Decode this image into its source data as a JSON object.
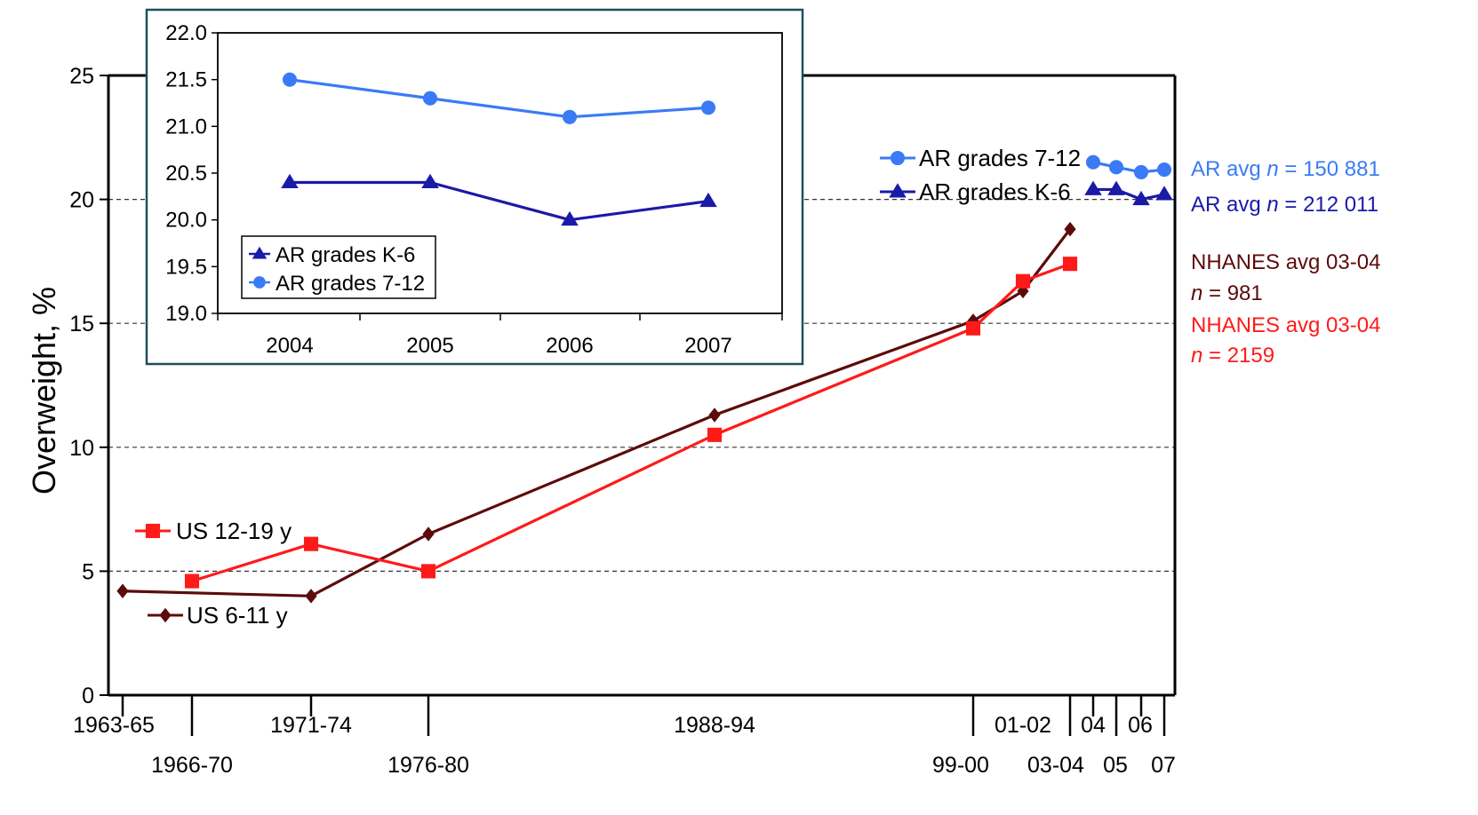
{
  "chart_data": [
    {
      "type": "line",
      "ylabel": "Overweight, %",
      "ylim": [
        0,
        25
      ],
      "yticks": [
        "0",
        "5",
        "10",
        "15",
        "20",
        "25"
      ],
      "grid": "horizontal dashed",
      "x_labels": [
        "1963-65",
        "1966-70",
        "1971-74",
        "1976-80",
        "1988-94",
        "99-00",
        "01-02",
        "03-04",
        "04",
        "05",
        "06",
        "07"
      ],
      "series": [
        {
          "name": "US 6-11 y",
          "color": "#5c0b0b",
          "marker": "diamond",
          "x": [
            "1963-65",
            "1971-74",
            "1976-80",
            "1988-94",
            "99-00",
            "01-02",
            "03-04"
          ],
          "values": [
            4.2,
            4.0,
            6.5,
            11.3,
            15.1,
            16.3,
            18.8
          ]
        },
        {
          "name": "US 12-19 y",
          "color": "#ff1a1a",
          "marker": "square",
          "x": [
            "1966-70",
            "1971-74",
            "1976-80",
            "1988-94",
            "99-00",
            "01-02",
            "03-04"
          ],
          "values": [
            4.6,
            6.1,
            5.0,
            10.5,
            14.8,
            16.7,
            17.4
          ]
        },
        {
          "name": "AR grades 7-12",
          "color": "#3a7bf5",
          "marker": "circle",
          "x": [
            "04",
            "05",
            "06",
            "07"
          ],
          "values": [
            21.5,
            21.3,
            21.1,
            21.2
          ]
        },
        {
          "name": "AR grades K-6",
          "color": "#1a1aa8",
          "marker": "triangle",
          "x": [
            "04",
            "05",
            "06",
            "07"
          ],
          "values": [
            20.4,
            20.4,
            20.0,
            20.2
          ]
        }
      ],
      "legend": [
        {
          "label": "AR grades 7-12",
          "series": "AR grades 7-12"
        },
        {
          "label": "AR grades K-6",
          "series": "AR grades K-6"
        },
        {
          "label": "US 12-19 y",
          "series": "US 12-19 y"
        },
        {
          "label": "US 6-11 y",
          "series": "US 6-11 y"
        }
      ],
      "annotations": [
        {
          "prefix": "AR avg ",
          "italic": "n",
          "suffix": " = 150 881",
          "color": "#3a7bf5"
        },
        {
          "prefix": "AR avg ",
          "italic": "n",
          "suffix": " = 212 011",
          "color": "#1a1aa8"
        },
        {
          "prefix": "NHANES avg 03-04",
          "italic": "",
          "suffix": "",
          "color": "#5c0b0b"
        },
        {
          "prefix": "",
          "italic": "n",
          "suffix": " = 981",
          "color": "#5c0b0b"
        },
        {
          "prefix": "NHANES avg 03-04",
          "italic": "",
          "suffix": "",
          "color": "#ff1a1a"
        },
        {
          "prefix": "",
          "italic": "n",
          "suffix": " = 2159",
          "color": "#ff1a1a"
        }
      ]
    },
    {
      "type": "line",
      "ylim": [
        19.0,
        22.0
      ],
      "yticks": [
        "19.0",
        "19.5",
        "20.0",
        "20.5",
        "21.0",
        "21.5",
        "22.0"
      ],
      "categories": [
        "2004",
        "2005",
        "2006",
        "2007"
      ],
      "series": [
        {
          "name": "AR grades K-6",
          "color": "#1a1aa8",
          "marker": "triangle",
          "values": [
            20.4,
            20.4,
            20.0,
            20.2
          ]
        },
        {
          "name": "AR grades 7-12",
          "color": "#3a7bf5",
          "marker": "circle",
          "values": [
            21.5,
            21.3,
            21.1,
            21.2
          ]
        }
      ],
      "legend": [
        "AR grades K-6",
        "AR grades 7-12"
      ]
    }
  ]
}
